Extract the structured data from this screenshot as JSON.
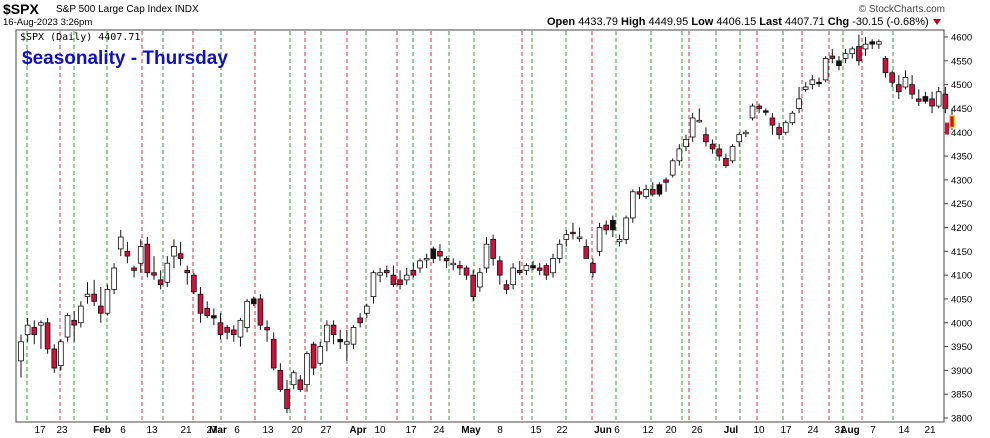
{
  "header": {
    "symbol": "$SPX",
    "name": "S&P 500 Large Cap Index  INDX",
    "timestamp": "16-Aug-2023 3:26pm",
    "watermark": "© StockCharts.com",
    "open_label": "Open",
    "open": "4433.79",
    "high_label": "High",
    "high": "4449.95",
    "low_label": "Low",
    "low": "4406.15",
    "last_label": "Last",
    "last": "4407.71",
    "chg_label": "Chg",
    "chg": "-30.15 (-0.68%)"
  },
  "colors": {
    "up": "#ffffff",
    "down": "#d0103a",
    "flat": "#111111",
    "last_day": "#f2e200",
    "thursday_line": "#d02020",
    "monday_line": "#1a9a1a",
    "title": "#1010c0"
  },
  "chart_data": {
    "type": "candlestick",
    "title": "$easonality - Thursday",
    "legend": "$SPX (Daily) 4407.71",
    "ylim": [
      3790,
      4615
    ],
    "y_ticks": [
      3800,
      3850,
      3900,
      3950,
      4000,
      4050,
      4100,
      4150,
      4200,
      4250,
      4300,
      4350,
      4400,
      4450,
      4500,
      4550,
      4600
    ],
    "x_labels": [
      "17",
      "23",
      "Feb",
      "6",
      "13",
      "21",
      "27",
      "Mar",
      "6",
      "13",
      "20",
      "27",
      "Apr",
      "10",
      "17",
      "24",
      "May",
      "8",
      "15",
      "22",
      "Jun",
      "6",
      "12",
      "20",
      "26",
      "Jul",
      "10",
      "17",
      "24",
      "31",
      "Aug",
      "7",
      "14",
      "21"
    ],
    "vertical_lines": "Red dashed lines mark Thursdays; green dashed lines mark Mondays",
    "last_close": 4407.71,
    "candles": [
      {
        "o": 3920,
        "h": 3975,
        "l": 3885,
        "c": 3960,
        "s": "up"
      },
      {
        "o": 3975,
        "h": 4010,
        "l": 3960,
        "c": 3995,
        "s": "up"
      },
      {
        "o": 3990,
        "h": 4005,
        "l": 3955,
        "c": 3975,
        "s": "dn"
      },
      {
        "o": 3995,
        "h": 4005,
        "l": 3945,
        "c": 4000,
        "s": "up"
      },
      {
        "o": 4000,
        "h": 4010,
        "l": 3935,
        "c": 3945,
        "s": "dn"
      },
      {
        "o": 3945,
        "h": 3955,
        "l": 3895,
        "c": 3905,
        "s": "dn"
      },
      {
        "o": 3910,
        "h": 3965,
        "l": 3900,
        "c": 3960,
        "s": "up"
      },
      {
        "o": 3970,
        "h": 4020,
        "l": 3960,
        "c": 4015,
        "s": "up"
      },
      {
        "o": 4005,
        "h": 4025,
        "l": 3960,
        "c": 3995,
        "s": "dn"
      },
      {
        "o": 4000,
        "h": 4045,
        "l": 3990,
        "c": 4035,
        "s": "up"
      },
      {
        "o": 4055,
        "h": 4085,
        "l": 4040,
        "c": 4060,
        "s": "up"
      },
      {
        "o": 4060,
        "h": 4090,
        "l": 4035,
        "c": 4045,
        "s": "dn"
      },
      {
        "o": 4035,
        "h": 4075,
        "l": 4000,
        "c": 4020,
        "s": "dn"
      },
      {
        "o": 4020,
        "h": 4080,
        "l": 4015,
        "c": 4070,
        "s": "up"
      },
      {
        "o": 4070,
        "h": 4125,
        "l": 4060,
        "c": 4115,
        "s": "up"
      },
      {
        "o": 4155,
        "h": 4195,
        "l": 4140,
        "c": 4180,
        "s": "up"
      },
      {
        "o": 4150,
        "h": 4170,
        "l": 4125,
        "c": 4140,
        "s": "dn"
      },
      {
        "o": 4115,
        "h": 4120,
        "l": 4095,
        "c": 4110,
        "s": "dn"
      },
      {
        "o": 4125,
        "h": 4175,
        "l": 4105,
        "c": 4160,
        "s": "up"
      },
      {
        "o": 4165,
        "h": 4180,
        "l": 4095,
        "c": 4105,
        "s": "dn"
      },
      {
        "o": 4105,
        "h": 4140,
        "l": 4090,
        "c": 4100,
        "s": "dn"
      },
      {
        "o": 4090,
        "h": 4110,
        "l": 4070,
        "c": 4080,
        "s": "dn"
      },
      {
        "o": 4085,
        "h": 4140,
        "l": 4075,
        "c": 4125,
        "s": "up"
      },
      {
        "o": 4140,
        "h": 4175,
        "l": 4115,
        "c": 4160,
        "s": "up"
      },
      {
        "o": 4145,
        "h": 4170,
        "l": 4120,
        "c": 4135,
        "s": "dn"
      },
      {
        "o": 4105,
        "h": 4120,
        "l": 4080,
        "c": 4110,
        "s": "dn"
      },
      {
        "o": 4100,
        "h": 4105,
        "l": 4060,
        "c": 4065,
        "s": "dn"
      },
      {
        "o": 4060,
        "h": 4075,
        "l": 4000,
        "c": 4020,
        "s": "dn"
      },
      {
        "o": 4030,
        "h": 4045,
        "l": 4010,
        "c": 4015,
        "s": "dn"
      },
      {
        "o": 4010,
        "h": 4030,
        "l": 3995,
        "c": 4015,
        "s": "fl"
      },
      {
        "o": 4000,
        "h": 4020,
        "l": 3965,
        "c": 3975,
        "s": "dn"
      },
      {
        "o": 3980,
        "h": 3995,
        "l": 3965,
        "c": 3990,
        "s": "dn"
      },
      {
        "o": 3985,
        "h": 3995,
        "l": 3960,
        "c": 3975,
        "s": "dn"
      },
      {
        "o": 3970,
        "h": 4010,
        "l": 3950,
        "c": 4005,
        "s": "up"
      },
      {
        "o": 3990,
        "h": 4050,
        "l": 3980,
        "c": 4045,
        "s": "up"
      },
      {
        "o": 4040,
        "h": 4055,
        "l": 4035,
        "c": 4050,
        "s": "fl"
      },
      {
        "o": 4050,
        "h": 4060,
        "l": 3985,
        "c": 3995,
        "s": "dn"
      },
      {
        "o": 3990,
        "h": 4005,
        "l": 3960,
        "c": 3985,
        "s": "dn"
      },
      {
        "o": 3965,
        "h": 3980,
        "l": 3900,
        "c": 3905,
        "s": "dn"
      },
      {
        "o": 3900,
        "h": 3915,
        "l": 3855,
        "c": 3860,
        "s": "dn"
      },
      {
        "o": 3860,
        "h": 3880,
        "l": 3810,
        "c": 3820,
        "s": "dn"
      },
      {
        "o": 3870,
        "h": 3900,
        "l": 3860,
        "c": 3895,
        "s": "up"
      },
      {
        "o": 3880,
        "h": 3890,
        "l": 3855,
        "c": 3860,
        "s": "dn"
      },
      {
        "o": 3870,
        "h": 3940,
        "l": 3855,
        "c": 3935,
        "s": "up"
      },
      {
        "o": 3955,
        "h": 3960,
        "l": 3890,
        "c": 3905,
        "s": "dn"
      },
      {
        "o": 3915,
        "h": 3960,
        "l": 3910,
        "c": 3950,
        "s": "up"
      },
      {
        "o": 3960,
        "h": 4005,
        "l": 3940,
        "c": 3995,
        "s": "up"
      },
      {
        "o": 3995,
        "h": 4005,
        "l": 3955,
        "c": 3975,
        "s": "dn"
      },
      {
        "o": 3960,
        "h": 3985,
        "l": 3945,
        "c": 3965,
        "s": "fl"
      },
      {
        "o": 3960,
        "h": 3985,
        "l": 3920,
        "c": 3955,
        "s": "up"
      },
      {
        "o": 3955,
        "h": 3995,
        "l": 3945,
        "c": 3990,
        "s": "up"
      },
      {
        "o": 4000,
        "h": 4020,
        "l": 3990,
        "c": 4010,
        "s": "dn"
      },
      {
        "o": 4020,
        "h": 4040,
        "l": 4010,
        "c": 4035,
        "s": "up"
      },
      {
        "o": 4055,
        "h": 4110,
        "l": 4040,
        "c": 4105,
        "s": "up"
      },
      {
        "o": 4105,
        "h": 4115,
        "l": 4085,
        "c": 4100,
        "s": "up"
      },
      {
        "o": 4110,
        "h": 4120,
        "l": 4095,
        "c": 4105,
        "s": "dn"
      },
      {
        "o": 4100,
        "h": 4120,
        "l": 4075,
        "c": 4080,
        "s": "dn"
      },
      {
        "o": 4080,
        "h": 4110,
        "l": 4070,
        "c": 4090,
        "s": "dn"
      },
      {
        "o": 4090,
        "h": 4115,
        "l": 4080,
        "c": 4100,
        "s": "up"
      },
      {
        "o": 4100,
        "h": 4125,
        "l": 4095,
        "c": 4110,
        "s": "dn"
      },
      {
        "o": 4115,
        "h": 4135,
        "l": 4105,
        "c": 4130,
        "s": "up"
      },
      {
        "o": 4135,
        "h": 4145,
        "l": 4115,
        "c": 4135,
        "s": "up"
      },
      {
        "o": 4135,
        "h": 4160,
        "l": 4125,
        "c": 4155,
        "s": "fl"
      },
      {
        "o": 4150,
        "h": 4165,
        "l": 4130,
        "c": 4140,
        "s": "dn"
      },
      {
        "o": 4135,
        "h": 4140,
        "l": 4115,
        "c": 4130,
        "s": "dn"
      },
      {
        "o": 4125,
        "h": 4135,
        "l": 4110,
        "c": 4125,
        "s": "up"
      },
      {
        "o": 4120,
        "h": 4130,
        "l": 4100,
        "c": 4115,
        "s": "dn"
      },
      {
        "o": 4115,
        "h": 4120,
        "l": 4090,
        "c": 4100,
        "s": "dn"
      },
      {
        "o": 4100,
        "h": 4110,
        "l": 4045,
        "c": 4055,
        "s": "dn"
      },
      {
        "o": 4075,
        "h": 4115,
        "l": 4065,
        "c": 4105,
        "s": "up"
      },
      {
        "o": 4115,
        "h": 4180,
        "l": 4105,
        "c": 4165,
        "s": "up"
      },
      {
        "o": 4175,
        "h": 4185,
        "l": 4120,
        "c": 4135,
        "s": "dn"
      },
      {
        "o": 4130,
        "h": 4140,
        "l": 4080,
        "c": 4100,
        "s": "dn"
      },
      {
        "o": 4080,
        "h": 4090,
        "l": 4060,
        "c": 4070,
        "s": "dn"
      },
      {
        "o": 4080,
        "h": 4125,
        "l": 4070,
        "c": 4115,
        "s": "up"
      },
      {
        "o": 4110,
        "h": 4130,
        "l": 4100,
        "c": 4105,
        "s": "dn"
      },
      {
        "o": 4110,
        "h": 4125,
        "l": 4100,
        "c": 4120,
        "s": "up"
      },
      {
        "o": 4120,
        "h": 4130,
        "l": 4110,
        "c": 4115,
        "s": "fl"
      },
      {
        "o": 4110,
        "h": 4125,
        "l": 4100,
        "c": 4115,
        "s": "dn"
      },
      {
        "o": 4120,
        "h": 4125,
        "l": 4090,
        "c": 4100,
        "s": "dn"
      },
      {
        "o": 4105,
        "h": 4145,
        "l": 4095,
        "c": 4135,
        "s": "up"
      },
      {
        "o": 4135,
        "h": 4175,
        "l": 4125,
        "c": 4165,
        "s": "up"
      },
      {
        "o": 4175,
        "h": 4195,
        "l": 4160,
        "c": 4185,
        "s": "up"
      },
      {
        "o": 4190,
        "h": 4210,
        "l": 4175,
        "c": 4190,
        "s": "dn"
      },
      {
        "o": 4180,
        "h": 4200,
        "l": 4170,
        "c": 4180,
        "s": "up"
      },
      {
        "o": 4160,
        "h": 4175,
        "l": 4135,
        "c": 4135,
        "s": "dn"
      },
      {
        "o": 4125,
        "h": 4135,
        "l": 4095,
        "c": 4105,
        "s": "dn"
      },
      {
        "o": 4150,
        "h": 4210,
        "l": 4140,
        "c": 4200,
        "s": "up"
      },
      {
        "o": 4205,
        "h": 4215,
        "l": 4185,
        "c": 4195,
        "s": "dn"
      },
      {
        "o": 4195,
        "h": 4225,
        "l": 4180,
        "c": 4215,
        "s": "fl"
      },
      {
        "o": 4170,
        "h": 4185,
        "l": 4160,
        "c": 4175,
        "s": "up"
      },
      {
        "o": 4175,
        "h": 4225,
        "l": 4165,
        "c": 4220,
        "s": "up"
      },
      {
        "o": 4220,
        "h": 4280,
        "l": 4210,
        "c": 4275,
        "s": "up"
      },
      {
        "o": 4275,
        "h": 4285,
        "l": 4260,
        "c": 4270,
        "s": "dn"
      },
      {
        "o": 4265,
        "h": 4290,
        "l": 4260,
        "c": 4280,
        "s": "up"
      },
      {
        "o": 4280,
        "h": 4295,
        "l": 4265,
        "c": 4270,
        "s": "dn"
      },
      {
        "o": 4270,
        "h": 4295,
        "l": 4265,
        "c": 4290,
        "s": "fl"
      },
      {
        "o": 4300,
        "h": 4305,
        "l": 4275,
        "c": 4295,
        "s": "dn"
      },
      {
        "o": 4310,
        "h": 4345,
        "l": 4305,
        "c": 4340,
        "s": "up"
      },
      {
        "o": 4340,
        "h": 4375,
        "l": 4330,
        "c": 4365,
        "s": "up"
      },
      {
        "o": 4370,
        "h": 4395,
        "l": 4360,
        "c": 4385,
        "s": "up"
      },
      {
        "o": 4390,
        "h": 4440,
        "l": 4380,
        "c": 4430,
        "s": "up"
      },
      {
        "o": 4425,
        "h": 4450,
        "l": 4420,
        "c": 4425,
        "s": "up"
      },
      {
        "o": 4395,
        "h": 4410,
        "l": 4370,
        "c": 4380,
        "s": "dn"
      },
      {
        "o": 4375,
        "h": 4385,
        "l": 4355,
        "c": 4365,
        "s": "dn"
      },
      {
        "o": 4365,
        "h": 4375,
        "l": 4340,
        "c": 4350,
        "s": "dn"
      },
      {
        "o": 4345,
        "h": 4355,
        "l": 4325,
        "c": 4330,
        "s": "dn"
      },
      {
        "o": 4340,
        "h": 4375,
        "l": 4335,
        "c": 4370,
        "s": "up"
      },
      {
        "o": 4380,
        "h": 4400,
        "l": 4370,
        "c": 4395,
        "s": "up"
      },
      {
        "o": 4400,
        "h": 4405,
        "l": 4390,
        "c": 4400,
        "s": "up"
      },
      {
        "o": 4430,
        "h": 4460,
        "l": 4425,
        "c": 4455,
        "s": "up"
      },
      {
        "o": 4455,
        "h": 4460,
        "l": 4440,
        "c": 4450,
        "s": "dn"
      },
      {
        "o": 4445,
        "h": 4450,
        "l": 4435,
        "c": 4445,
        "s": "fl"
      },
      {
        "o": 4430,
        "h": 4440,
        "l": 4395,
        "c": 4415,
        "s": "dn"
      },
      {
        "o": 4410,
        "h": 4420,
        "l": 4385,
        "c": 4395,
        "s": "dn"
      },
      {
        "o": 4400,
        "h": 4425,
        "l": 4395,
        "c": 4420,
        "s": "up"
      },
      {
        "o": 4420,
        "h": 4445,
        "l": 4415,
        "c": 4440,
        "s": "up"
      },
      {
        "o": 4450,
        "h": 4495,
        "l": 4440,
        "c": 4470,
        "s": "up"
      },
      {
        "o": 4490,
        "h": 4505,
        "l": 4485,
        "c": 4495,
        "s": "up"
      },
      {
        "o": 4500,
        "h": 4520,
        "l": 4490,
        "c": 4510,
        "s": "up"
      },
      {
        "o": 4505,
        "h": 4515,
        "l": 4495,
        "c": 4505,
        "s": "fl"
      },
      {
        "o": 4510,
        "h": 4560,
        "l": 4505,
        "c": 4555,
        "s": "up"
      },
      {
        "o": 4560,
        "h": 4575,
        "l": 4545,
        "c": 4555,
        "s": "dn"
      },
      {
        "o": 4540,
        "h": 4560,
        "l": 4530,
        "c": 4550,
        "s": "fl"
      },
      {
        "o": 4555,
        "h": 4575,
        "l": 4545,
        "c": 4565,
        "s": "up"
      },
      {
        "o": 4565,
        "h": 4580,
        "l": 4555,
        "c": 4575,
        "s": "up"
      },
      {
        "o": 4580,
        "h": 4605,
        "l": 4540,
        "c": 4550,
        "s": "dn"
      },
      {
        "o": 4575,
        "h": 4600,
        "l": 4560,
        "c": 4585,
        "s": "up"
      },
      {
        "o": 4585,
        "h": 4595,
        "l": 4575,
        "c": 4590,
        "s": "fl"
      },
      {
        "o": 4590,
        "h": 4595,
        "l": 4575,
        "c": 4585,
        "s": "up"
      },
      {
        "o": 4555,
        "h": 4560,
        "l": 4515,
        "c": 4525,
        "s": "dn"
      },
      {
        "o": 4525,
        "h": 4530,
        "l": 4495,
        "c": 4505,
        "s": "dn"
      },
      {
        "o": 4500,
        "h": 4520,
        "l": 4470,
        "c": 4485,
        "s": "dn"
      },
      {
        "o": 4495,
        "h": 4530,
        "l": 4490,
        "c": 4515,
        "s": "up"
      },
      {
        "o": 4500,
        "h": 4520,
        "l": 4470,
        "c": 4480,
        "s": "dn"
      },
      {
        "o": 4470,
        "h": 4490,
        "l": 4455,
        "c": 4465,
        "s": "dn"
      },
      {
        "o": 4465,
        "h": 4485,
        "l": 4460,
        "c": 4475,
        "s": "fl"
      },
      {
        "o": 4470,
        "h": 4485,
        "l": 4440,
        "c": 4455,
        "s": "dn"
      },
      {
        "o": 4455,
        "h": 4495,
        "l": 4450,
        "c": 4485,
        "s": "up"
      },
      {
        "o": 4480,
        "h": 4495,
        "l": 4440,
        "c": 4450,
        "s": "dn"
      },
      {
        "o": 4435,
        "h": 4450,
        "l": 4405,
        "c": 4410,
        "s": "last"
      }
    ]
  }
}
